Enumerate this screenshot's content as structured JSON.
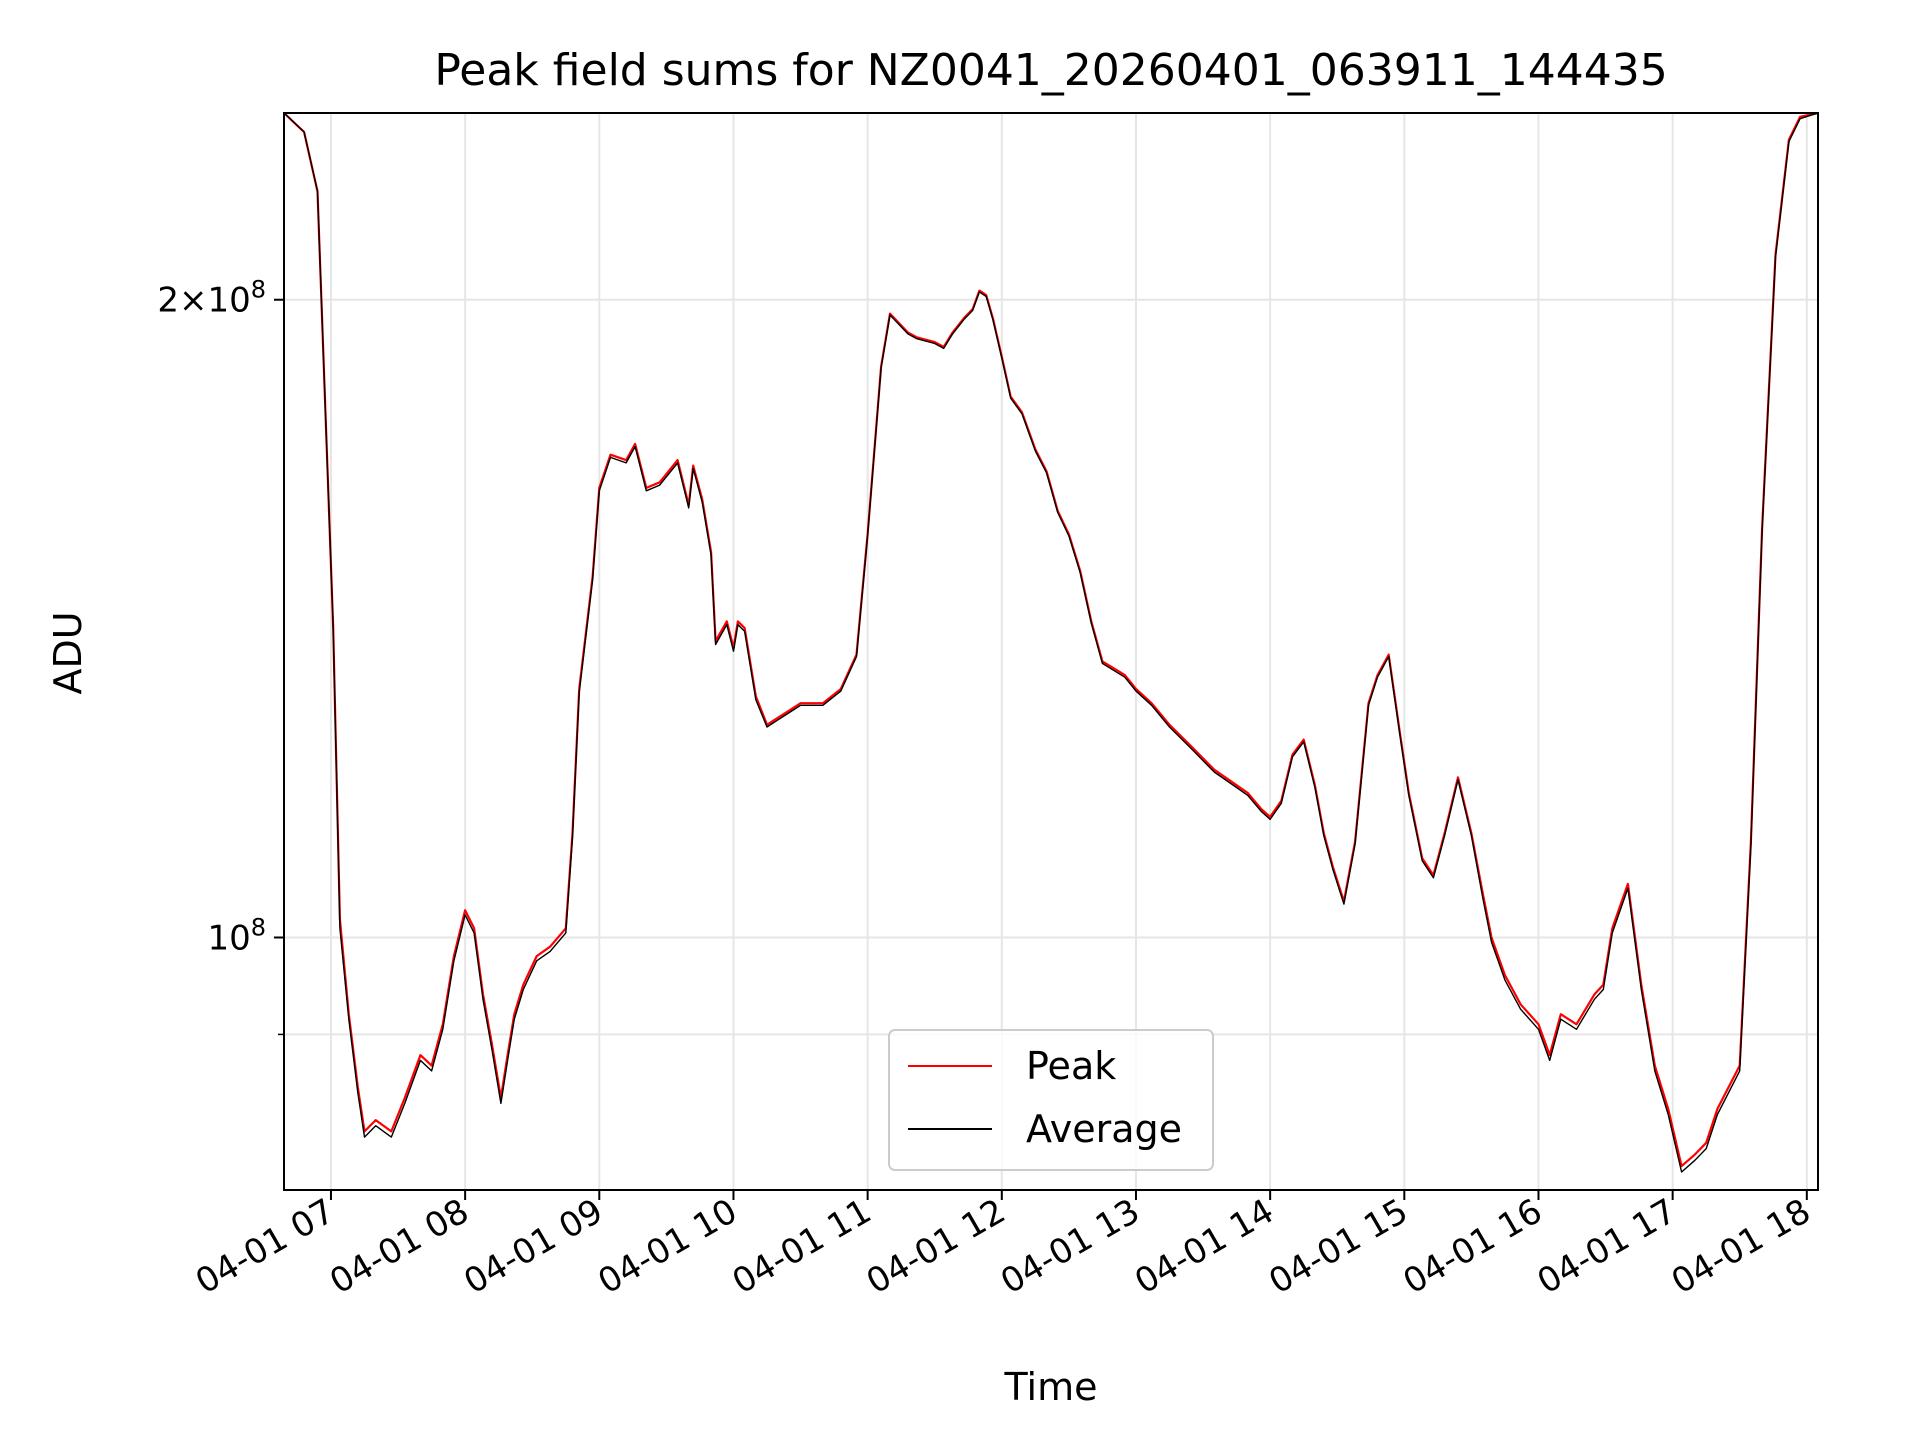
{
  "chart_data": {
    "type": "line",
    "title": "Peak field sums for NZ0041_20260401_063911_144435",
    "xlabel": "Time",
    "ylabel": "ADU",
    "y_scale": "log",
    "ylim": [
      76000000,
      245000000
    ],
    "xlim": [
      "04-01 06:39",
      "04-01 18:05"
    ],
    "grid": true,
    "legend_position": "lower center",
    "x_ticks": [
      "04-01 07",
      "04-01 08",
      "04-01 09",
      "04-01 10",
      "04-01 11",
      "04-01 12",
      "04-01 13",
      "04-01 14",
      "04-01 15",
      "04-01 16",
      "04-01 17",
      "04-01 18"
    ],
    "y_ticks": [
      {
        "value": 100000000,
        "base": "10",
        "exp": "8",
        "mantissa": ""
      },
      {
        "value": 200000000,
        "base": "10",
        "exp": "8",
        "mantissa": "2×"
      }
    ],
    "y_minor_ticks": [
      90000000
    ],
    "x": [
      "06:39",
      "06:48",
      "06:54",
      "07:01",
      "07:04",
      "07:08",
      "07:12",
      "07:15",
      "07:20",
      "07:27",
      "07:33",
      "07:40",
      "07:45",
      "07:50",
      "07:55",
      "08:00",
      "08:04",
      "08:08",
      "08:12",
      "08:16",
      "08:19",
      "08:22",
      "08:26",
      "08:32",
      "08:38",
      "08:45",
      "08:48",
      "08:51",
      "08:57",
      "09:00",
      "09:05",
      "09:12",
      "09:16",
      "09:21",
      "09:27",
      "09:35",
      "09:40",
      "09:42",
      "09:46",
      "09:50",
      "09:52",
      "09:57",
      "10:00",
      "10:02",
      "10:05",
      "10:10",
      "10:15",
      "10:20",
      "10:25",
      "10:30",
      "10:40",
      "10:48",
      "10:55",
      "11:00",
      "11:06",
      "11:10",
      "11:14",
      "11:18",
      "11:22",
      "11:30",
      "11:34",
      "11:38",
      "11:43",
      "11:47",
      "11:50",
      "11:53",
      "11:56",
      "12:00",
      "12:04",
      "12:09",
      "12:15",
      "12:20",
      "12:25",
      "12:30",
      "12:35",
      "12:40",
      "12:45",
      "12:50",
      "12:55",
      "13:00",
      "13:07",
      "13:15",
      "13:25",
      "13:35",
      "13:45",
      "13:50",
      "13:56",
      "14:00",
      "14:05",
      "14:10",
      "14:15",
      "14:20",
      "14:24",
      "14:28",
      "14:33",
      "14:38",
      "14:44",
      "14:48",
      "14:53",
      "14:58",
      "15:02",
      "15:08",
      "15:13",
      "15:18",
      "15:24",
      "15:30",
      "15:35",
      "15:39",
      "15:45",
      "15:52",
      "16:00",
      "16:05",
      "16:10",
      "16:17",
      "16:25",
      "16:29",
      "16:33",
      "16:40",
      "16:46",
      "16:52",
      "16:58",
      "17:04",
      "17:10",
      "17:15",
      "17:20",
      "17:30",
      "17:35",
      "17:40",
      "17:46",
      "17:52",
      "17:57",
      "18:05"
    ],
    "series": [
      {
        "name": "Peak",
        "color": "#ff0000",
        "values": [
          245000000,
          240000000,
          225000000,
          140000000,
          102000000,
          92000000,
          85000000,
          81000000,
          82000000,
          81000000,
          84000000,
          88000000,
          87000000,
          91000000,
          98000000,
          103000000,
          101000000,
          94000000,
          89000000,
          84000000,
          88000000,
          92000000,
          95000000,
          98000000,
          99000000,
          101000000,
          112000000,
          131000000,
          148000000,
          163000000,
          169000000,
          168000000,
          171000000,
          163000000,
          164000000,
          168000000,
          160000000,
          167000000,
          161000000,
          152000000,
          138000000,
          141000000,
          137000000,
          141000000,
          140000000,
          130000000,
          126000000,
          127000000,
          128000000,
          129000000,
          129000000,
          131000000,
          136000000,
          155000000,
          186000000,
          197000000,
          195000000,
          193000000,
          192000000,
          191000000,
          190000000,
          193000000,
          196000000,
          198000000,
          202000000,
          201000000,
          196000000,
          188000000,
          180000000,
          177000000,
          170000000,
          166000000,
          159000000,
          155000000,
          149000000,
          141000000,
          135000000,
          134000000,
          133000000,
          131000000,
          129000000,
          126000000,
          123000000,
          120000000,
          118000000,
          117000000,
          115000000,
          114000000,
          116000000,
          122000000,
          124000000,
          118000000,
          112000000,
          108000000,
          104000000,
          111000000,
          129000000,
          133000000,
          136000000,
          125000000,
          117000000,
          109000000,
          107000000,
          112000000,
          119000000,
          112000000,
          105000000,
          100000000,
          96000000,
          93000000,
          91000000,
          88000000,
          92000000,
          91000000,
          94000000,
          95000000,
          101000000,
          106000000,
          95000000,
          87000000,
          83000000,
          78000000,
          79000000,
          80000000,
          83000000,
          87000000,
          111000000,
          156000000,
          210000000,
          238000000,
          244000000,
          245000000
        ]
      },
      {
        "name": "Average",
        "color": "#000000",
        "values": [
          245000000,
          240000000,
          225000000,
          140000000,
          101000000,
          91500000,
          84500000,
          80500000,
          81500000,
          80500000,
          83500000,
          87500000,
          86500000,
          90500000,
          97500000,
          102500000,
          100500000,
          93500000,
          88500000,
          83500000,
          87500000,
          91500000,
          94500000,
          97500000,
          98500000,
          100500000,
          111500000,
          130500000,
          147500000,
          162500000,
          168500000,
          167500000,
          170500000,
          162500000,
          163500000,
          167500000,
          159500000,
          166500000,
          160500000,
          151500000,
          137500000,
          140500000,
          136500000,
          140500000,
          139500000,
          129500000,
          125700000,
          126700000,
          127700000,
          128700000,
          128700000,
          130700000,
          135700000,
          154700000,
          185700000,
          196700000,
          194700000,
          192700000,
          191700000,
          190700000,
          189700000,
          192700000,
          195700000,
          197700000,
          201700000,
          200700000,
          195700000,
          187700000,
          179700000,
          176700000,
          169700000,
          165700000,
          158700000,
          154700000,
          148700000,
          140700000,
          134700000,
          133700000,
          132700000,
          130700000,
          128700000,
          125700000,
          122700000,
          119700000,
          117700000,
          116700000,
          114700000,
          113700000,
          115700000,
          121700000,
          123700000,
          117700000,
          111700000,
          107700000,
          103700000,
          110700000,
          128700000,
          132700000,
          135700000,
          124700000,
          116700000,
          108700000,
          106700000,
          111700000,
          118700000,
          111700000,
          104500000,
          99500000,
          95500000,
          92500000,
          90500000,
          87500000,
          91500000,
          90500000,
          93500000,
          94500000,
          100500000,
          105500000,
          94500000,
          86500000,
          82500000,
          77500000,
          78500000,
          79500000,
          82500000,
          86500000,
          110500000,
          155500000,
          209500000,
          237500000,
          243500000,
          245000000
        ]
      }
    ]
  }
}
